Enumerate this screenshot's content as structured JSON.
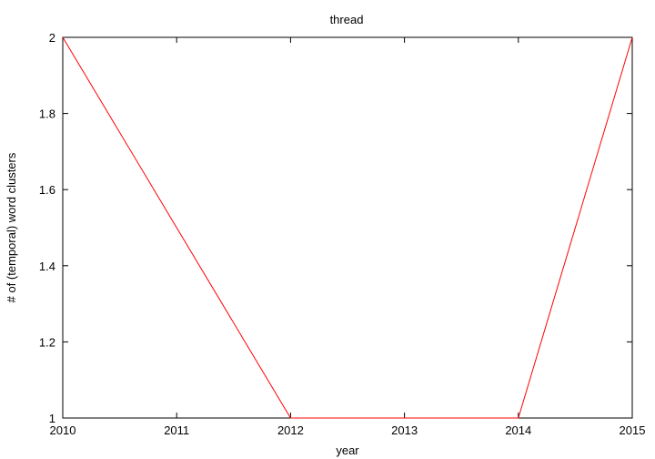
{
  "chart_data": {
    "type": "line",
    "title": "thread",
    "xlabel": "year",
    "ylabel": "# of (temporal) word clusters",
    "xlim": [
      2010,
      2015
    ],
    "ylim": [
      1,
      2
    ],
    "x_ticks": [
      2010,
      2011,
      2012,
      2013,
      2014,
      2015
    ],
    "y_ticks": [
      1,
      1.2,
      1.4,
      1.6,
      1.8,
      2
    ],
    "y_tick_labels": [
      "1",
      "1.2",
      "1.4",
      "1.6",
      "1.8",
      "2"
    ],
    "grid": false,
    "series": [
      {
        "color": "#ff0000",
        "x": [
          2010,
          2012,
          2014,
          2015
        ],
        "y": [
          2,
          1,
          1,
          2
        ]
      }
    ]
  }
}
